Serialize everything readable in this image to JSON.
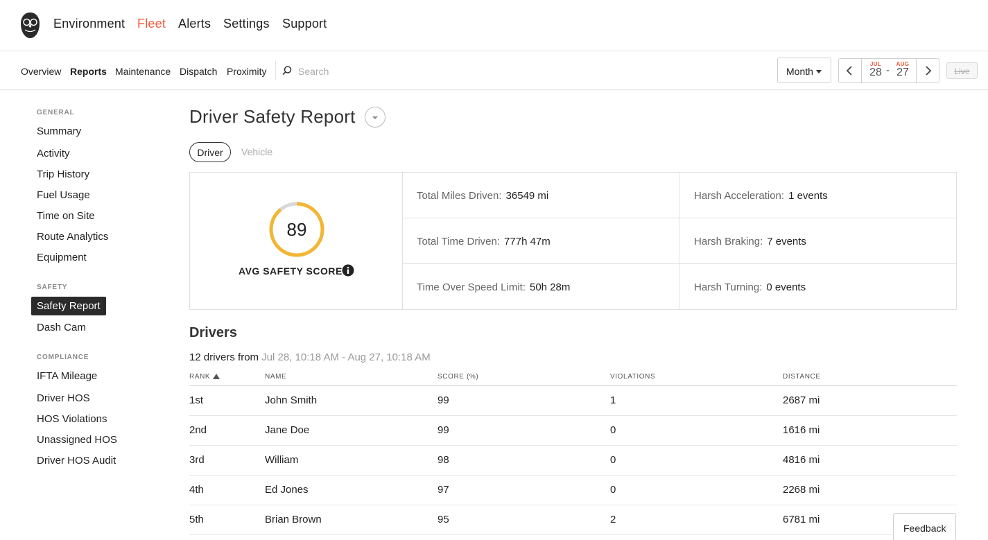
{
  "nav": {
    "items": [
      "Environment",
      "Fleet",
      "Alerts",
      "Settings",
      "Support"
    ],
    "active": "Fleet"
  },
  "subnav": {
    "items": [
      "Overview",
      "Reports",
      "Maintenance",
      "Dispatch",
      "Proximity"
    ],
    "active": "Reports",
    "search_placeholder": "Search"
  },
  "controls": {
    "period": "Month",
    "start": {
      "month": "JUL",
      "day": "28"
    },
    "end": {
      "month": "AUG",
      "day": "27"
    },
    "separator": "-",
    "live_label": "Live"
  },
  "sidebar": {
    "general_label": "GENERAL",
    "general": [
      "Summary",
      "Activity",
      "Trip History",
      "Fuel Usage",
      "Time on Site",
      "Route Analytics",
      "Equipment"
    ],
    "safety_label": "SAFETY",
    "safety": [
      "Safety Report",
      "Dash Cam"
    ],
    "compliance_label": "COMPLIANCE",
    "compliance": [
      "IFTA Mileage",
      "Driver HOS",
      "HOS Violations",
      "Unassigned HOS",
      "Driver HOS Audit"
    ]
  },
  "report": {
    "title": "Driver Safety Report",
    "tabs": [
      "Driver",
      "Vehicle"
    ],
    "active_tab": "Driver",
    "score": "89",
    "score_fraction": 0.89,
    "score_label": "AVG SAFETY SCORE",
    "stats": {
      "miles": {
        "label": "Total Miles Driven:",
        "value": "36549 mi"
      },
      "time": {
        "label": "Total Time Driven:",
        "value": "777h 47m"
      },
      "speed": {
        "label": "Time Over Speed Limit:",
        "value": "50h 28m"
      },
      "accel": {
        "label": "Harsh Acceleration:",
        "value": "1 events"
      },
      "braking": {
        "label": "Harsh Braking:",
        "value": "7 events"
      },
      "turning": {
        "label": "Harsh Turning:",
        "value": "0 events"
      }
    }
  },
  "drivers": {
    "heading": "Drivers",
    "count_text": "12 drivers from",
    "range_text": "Jul 28, 10:18 AM - Aug 27, 10:18 AM",
    "columns": [
      "RANK",
      "NAME",
      "SCORE (%)",
      "VIOLATIONS",
      "DISTANCE"
    ],
    "rows": [
      {
        "rank": "1st",
        "name": "John Smith",
        "score": "99",
        "violations": "1",
        "distance": "2687 mi"
      },
      {
        "rank": "2nd",
        "name": "Jane Doe",
        "score": "99",
        "violations": "0",
        "distance": "1616 mi"
      },
      {
        "rank": "3rd",
        "name": "William",
        "score": "98",
        "violations": "0",
        "distance": "4816 mi"
      },
      {
        "rank": "4th",
        "name": "Ed Jones",
        "score": "97",
        "violations": "0",
        "distance": "2268 mi"
      },
      {
        "rank": "5th",
        "name": "Brian Brown",
        "score": "95",
        "violations": "2",
        "distance": "6781 mi"
      }
    ]
  },
  "feedback_label": "Feedback",
  "colors": {
    "accent": "#f15a3a",
    "gauge": "#f2b632",
    "gauge_track": "#d8d8d8"
  }
}
